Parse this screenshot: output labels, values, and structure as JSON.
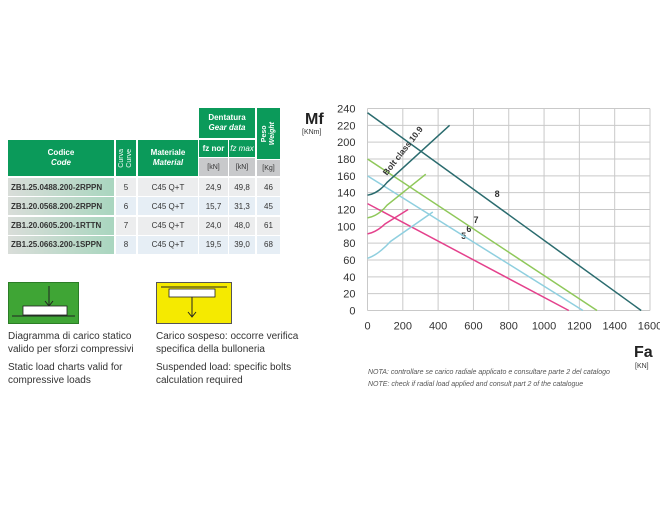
{
  "table": {
    "header_group": {
      "it": "Dentatura",
      "en": "Gear data"
    },
    "columns": [
      {
        "it": "Codice",
        "en": "Code"
      },
      {
        "it": "Curva",
        "en": "Curve"
      },
      {
        "it": "Materiale",
        "en": "Material"
      },
      {
        "it": "fz nor",
        "unit": "[kN]"
      },
      {
        "it": "fz max",
        "unit": "[kN]"
      },
      {
        "it": "Peso",
        "en": "Weight",
        "unit": "[Kg]"
      }
    ],
    "rows": [
      [
        "ZB1.25.0488.200-2RPPN",
        "5",
        "C45 Q+T",
        "24,9",
        "49,8",
        "46"
      ],
      [
        "ZB1.20.0568.200-2RPPN",
        "6",
        "C45 Q+T",
        "15,7",
        "31,3",
        "45"
      ],
      [
        "ZB1.20.0605.200-1RTTN",
        "7",
        "C45 Q+T",
        "24,0",
        "48,0",
        "61"
      ],
      [
        "ZB1.25.0663.200-1SPPN",
        "8",
        "C45 Q+T",
        "19,5",
        "39,0",
        "68"
      ]
    ]
  },
  "legend": {
    "static": {
      "color": "#3fa535",
      "it": "Diagramma di carico statico valido per sforzi compressivi",
      "en": "Static load charts valid for compressive loads"
    },
    "suspended": {
      "color": "#f5ea00",
      "it": "Carico sospeso: occorre verifica specifica della bulloneria",
      "en": "Suspended load: specific bolts calculation required"
    }
  },
  "notes": [
    "NOTA: controllare se carico radiale applicato e consultare parte 2 del catalogo",
    "NOTE: check if radial load applied and consult part 2  of the catalogue"
  ],
  "chart_data": {
    "type": "line",
    "ylabel": "Mf",
    "yunit": "[KNm]",
    "xlabel": "Fa",
    "xunit": "[KN]",
    "xlim": [
      0,
      1600
    ],
    "ylim": [
      0,
      240
    ],
    "xticks": [
      0,
      200,
      400,
      600,
      800,
      1000,
      1200,
      1400,
      1600
    ],
    "yticks": [
      0,
      20,
      40,
      60,
      80,
      100,
      120,
      140,
      160,
      180,
      200,
      220,
      240
    ],
    "grid": true,
    "bolt_label": "Bolt class 10.9",
    "series": [
      {
        "name": "5",
        "color": "#e4418c",
        "load_line": [
          [
            0,
            127
          ],
          [
            1140,
            0
          ]
        ],
        "bolt_curve": [
          [
            0,
            91
          ],
          [
            50,
            93
          ],
          [
            100,
            103
          ],
          [
            230,
            120
          ]
        ]
      },
      {
        "name": "6",
        "color": "#8fcfdf",
        "load_line": [
          [
            0,
            160
          ],
          [
            1220,
            0
          ]
        ],
        "bolt_curve": [
          [
            0,
            62
          ],
          [
            60,
            66
          ],
          [
            130,
            82
          ],
          [
            370,
            117
          ]
        ]
      },
      {
        "name": "7",
        "color": "#8fc85a",
        "load_line": [
          [
            0,
            180
          ],
          [
            1300,
            0
          ]
        ],
        "bolt_curve": [
          [
            0,
            110
          ],
          [
            60,
            112
          ],
          [
            110,
            125
          ],
          [
            330,
            162
          ]
        ]
      },
      {
        "name": "8",
        "color": "#2a6b6e",
        "load_line": [
          [
            0,
            235
          ],
          [
            1550,
            0
          ]
        ],
        "bolt_curve": [
          [
            0,
            137
          ],
          [
            60,
            139
          ],
          [
            110,
            152
          ],
          [
            465,
            220
          ]
        ]
      }
    ]
  }
}
